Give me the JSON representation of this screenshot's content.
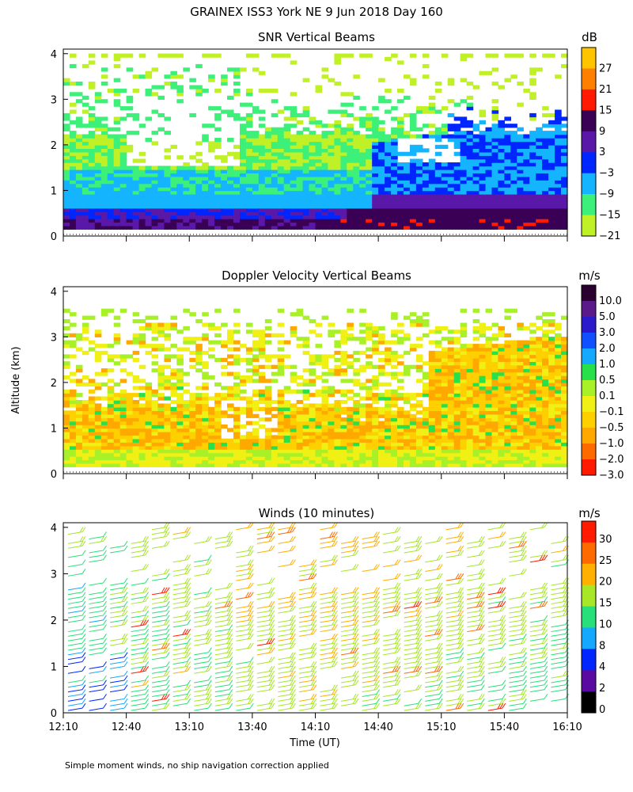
{
  "figure": {
    "title": "GRAINEX ISS3 York NE   9 Jun 2018 Day 160",
    "ylabel": "Altitude (km)",
    "xlabel": "Time (UT)",
    "footnote": "Simple moment winds, no ship navigation correction applied",
    "x_ticks": [
      "12:10",
      "12:40",
      "13:10",
      "13:40",
      "14:10",
      "14:40",
      "15:10",
      "15:40",
      "16:10"
    ],
    "y_ticks": [
      "0",
      "1",
      "2",
      "3",
      "4"
    ]
  },
  "chart_data": [
    {
      "type": "heatmap",
      "title": "SNR Vertical Beams",
      "colorbar_unit": "dB",
      "colorbar_labels": [
        "27",
        "21",
        "15",
        "9",
        "3",
        "−3",
        "−9",
        "−15",
        "−21"
      ],
      "colorbar_colors": [
        "#ffc400",
        "#ff8000",
        "#ff1a00",
        "#3a0055",
        "#5a18a8",
        "#0026ff",
        "#14b4ff",
        "#3cf07a",
        "#c0f026"
      ],
      "x_range": [
        "12:10",
        "16:10"
      ],
      "y_range_km": [
        0,
        4
      ],
      "profile_bands_km": [
        {
          "from": 0.15,
          "to": 0.35,
          "dB": 6
        },
        {
          "from": 0.35,
          "to": 0.6,
          "dB": -3
        },
        {
          "from": 0.6,
          "to": 1.0,
          "dB": -12
        },
        {
          "from": 1.0,
          "to": 2.5,
          "dB": -18
        },
        {
          "from": 2.5,
          "to": 4.0,
          "dB": -21
        }
      ]
    },
    {
      "type": "heatmap",
      "title": "Doppler Velocity Vertical Beams",
      "colorbar_unit": "m/s",
      "colorbar_labels": [
        "10.0",
        "5.0",
        "3.0",
        "2.0",
        "1.0",
        "0.5",
        "0.1",
        "−0.1",
        "−0.5",
        "−1.0",
        "−2.0",
        "−3.0"
      ],
      "colorbar_colors": [
        "#2a0030",
        "#5a1a8a",
        "#2a1acc",
        "#1050ff",
        "#14a8ff",
        "#28e04a",
        "#a8f028",
        "#f0f014",
        "#ffd000",
        "#ffa800",
        "#ff6a00",
        "#ff1a00"
      ],
      "x_range": [
        "12:10",
        "16:10"
      ],
      "y_range_km": [
        0,
        4
      ],
      "profile_bands_km": [
        {
          "from": 0.15,
          "to": 0.5,
          "ms": -0.1
        },
        {
          "from": 0.5,
          "to": 1.5,
          "ms": -0.5
        },
        {
          "from": 1.5,
          "to": 2.5,
          "ms": -1.0
        },
        {
          "from": 2.5,
          "to": 3.0,
          "ms": -0.5
        }
      ]
    },
    {
      "type": "scatter",
      "title": "Winds (10 minutes)",
      "colorbar_unit": "m/s",
      "colorbar_labels": [
        "30",
        "25",
        "20",
        "15",
        "10",
        "8",
        "4",
        "2",
        "0"
      ],
      "colorbar_colors": [
        "#ff1a00",
        "#ff6a00",
        "#ffb000",
        "#a8e628",
        "#28e07a",
        "#14a8ff",
        "#0026ff",
        "#5a0aa0",
        "#000000"
      ],
      "x_range": [
        "12:10",
        "16:10"
      ],
      "y_range_km": [
        0,
        4
      ],
      "times": [
        "12:10",
        "12:20",
        "12:30",
        "12:40",
        "12:50",
        "13:00",
        "13:10",
        "13:20",
        "13:30",
        "13:40",
        "13:50",
        "14:00",
        "14:10",
        "14:20",
        "14:30",
        "14:40",
        "14:50",
        "15:00",
        "15:10",
        "15:20",
        "15:30",
        "15:40",
        "15:50",
        "16:00"
      ],
      "typical_speed_ms": [
        9,
        10,
        12,
        13,
        13,
        14,
        14,
        15,
        16,
        17,
        18,
        18,
        18,
        17,
        17,
        16,
        16,
        16,
        15,
        15,
        14,
        14,
        13,
        13
      ]
    }
  ]
}
